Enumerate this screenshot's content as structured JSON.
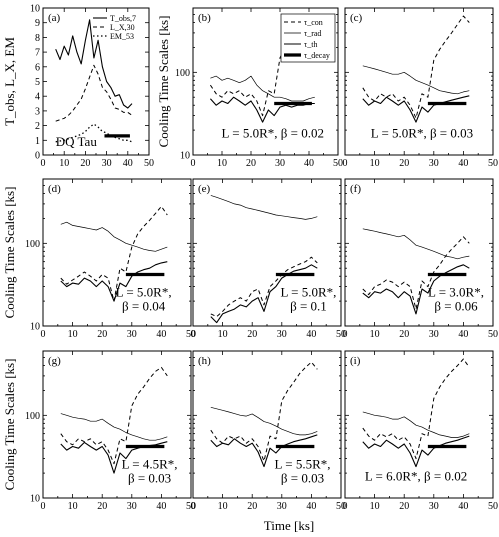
{
  "figure": {
    "x_axis_title": "Time [ks]",
    "y_axis_title_cooling": "Cooling Time Scales [ks]",
    "y_axis_title_obs": "T_obs, L_X, EM"
  },
  "legend": {
    "entries": [
      {
        "key": "con",
        "label": "τ_con",
        "style": "dashed"
      },
      {
        "key": "rad",
        "label": "τ_rad",
        "style": "thin"
      },
      {
        "key": "th",
        "label": "τ_th",
        "style": "solid"
      },
      {
        "key": "decay",
        "label": "τ_decay",
        "style": "thick"
      }
    ]
  },
  "obs_legend": {
    "entries": [
      {
        "key": "T",
        "label": "T_obs,7",
        "style": "solid"
      },
      {
        "key": "LX",
        "label": "L_X,30",
        "style": "dashed"
      },
      {
        "key": "EM",
        "label": "EM_53",
        "style": "dotted"
      }
    ]
  },
  "chart_data": [
    {
      "panel": "a",
      "type": "line",
      "annotation": "DQ Tau",
      "xlim": [
        0,
        50
      ],
      "ylim": [
        0,
        10
      ],
      "x_ticks": [
        0,
        10,
        20,
        30,
        40,
        50
      ],
      "y_ticks": [
        0,
        1,
        2,
        3,
        4,
        5,
        6,
        7,
        8,
        9,
        10
      ],
      "x": [
        6,
        8,
        10,
        12,
        14,
        16,
        18,
        20,
        22,
        24,
        26,
        28,
        30,
        32,
        34,
        36,
        38,
        40,
        42
      ],
      "series": [
        {
          "name": "T_obs,7",
          "style": "solid",
          "values": [
            7.2,
            6.5,
            7.4,
            6.8,
            8.1,
            7.0,
            6.2,
            7.8,
            9.2,
            6.6,
            7.8,
            6.0,
            5.0,
            4.6,
            4.0,
            4.1,
            3.4,
            3.2,
            3.5
          ]
        },
        {
          "name": "L_X,30",
          "style": "dashed",
          "values": [
            2.3,
            2.4,
            2.5,
            2.7,
            3.0,
            3.4,
            3.8,
            4.5,
            5.3,
            6.1,
            5.5,
            4.6,
            4.3,
            3.8,
            3.2,
            3.1,
            2.9,
            2.9,
            2.7
          ]
        },
        {
          "name": "EM_53",
          "style": "dotted",
          "values": [
            0.9,
            0.95,
            1.0,
            1.1,
            1.2,
            1.3,
            1.4,
            1.6,
            1.9,
            2.1,
            1.9,
            1.6,
            1.5,
            1.3,
            1.2,
            1.1,
            1.0,
            1.0,
            0.9
          ]
        },
        {
          "name": "decay",
          "style": "thick",
          "x_range": [
            29,
            41
          ],
          "value": 1.3
        }
      ]
    },
    {
      "panel": "b",
      "type": "line",
      "annotation": "L = 5.0R*, β = 0.02",
      "log_y": true,
      "xlim": [
        0,
        50
      ],
      "ylim": [
        10,
        600
      ],
      "x_ticks": [
        0,
        10,
        20,
        30,
        40,
        50
      ],
      "y_ticks": [
        10,
        100
      ],
      "x": [
        6,
        8,
        10,
        12,
        14,
        16,
        18,
        20,
        22,
        24,
        26,
        28,
        30,
        32,
        34,
        36,
        38,
        40,
        42
      ],
      "series": [
        {
          "name": "τ_con",
          "style": "dashed",
          "values": [
            70,
            55,
            50,
            60,
            55,
            60,
            50,
            55,
            45,
            30,
            60,
            55,
            150,
            200,
            250,
            300,
            380,
            500,
            400
          ]
        },
        {
          "name": "τ_rad",
          "style": "thin",
          "values": [
            85,
            90,
            80,
            85,
            80,
            75,
            80,
            90,
            70,
            60,
            55,
            50,
            50,
            48,
            45,
            45,
            45,
            48,
            50
          ]
        },
        {
          "name": "τ_th",
          "style": "solid",
          "values": [
            48,
            40,
            45,
            42,
            50,
            45,
            40,
            45,
            35,
            25,
            35,
            30,
            38,
            40,
            38,
            40,
            40,
            42,
            42
          ]
        },
        {
          "name": "τ_decay",
          "style": "thick",
          "x_range": [
            28,
            41
          ],
          "value": 42
        }
      ]
    },
    {
      "panel": "c",
      "type": "line",
      "annotation": "L = 5.0R*, β = 0.03",
      "log_y": true,
      "xlim": [
        0,
        50
      ],
      "ylim": [
        10,
        600
      ],
      "x_ticks": [
        0,
        10,
        20,
        30,
        40,
        50
      ],
      "y_ticks": [
        10,
        100
      ],
      "x": [
        6,
        8,
        10,
        12,
        14,
        16,
        18,
        20,
        22,
        24,
        26,
        28,
        30,
        32,
        34,
        36,
        38,
        40,
        42
      ],
      "series": [
        {
          "name": "τ_con",
          "style": "dashed",
          "values": [
            65,
            50,
            45,
            55,
            50,
            55,
            45,
            50,
            40,
            28,
            55,
            50,
            140,
            190,
            240,
            300,
            380,
            480,
            400
          ]
        },
        {
          "name": "τ_rad",
          "style": "thin",
          "values": [
            120,
            115,
            110,
            105,
            100,
            95,
            95,
            100,
            90,
            80,
            75,
            70,
            65,
            60,
            58,
            56,
            55,
            58,
            60
          ]
        },
        {
          "name": "τ_th",
          "style": "solid",
          "values": [
            48,
            40,
            45,
            42,
            50,
            45,
            40,
            45,
            35,
            25,
            38,
            33,
            40,
            42,
            44,
            46,
            48,
            50,
            52
          ]
        },
        {
          "name": "τ_decay",
          "style": "thick",
          "x_range": [
            28,
            41
          ],
          "value": 42
        }
      ]
    },
    {
      "panel": "d",
      "type": "line",
      "annotation": "L = 5.0R*, β = 0.04",
      "log_y": true,
      "xlim": [
        0,
        50
      ],
      "ylim": [
        10,
        600
      ],
      "x_ticks": [
        0,
        10,
        20,
        30,
        40,
        50
      ],
      "y_ticks": [
        10,
        100
      ],
      "x": [
        6,
        8,
        10,
        12,
        14,
        16,
        18,
        20,
        22,
        24,
        26,
        28,
        30,
        32,
        34,
        36,
        38,
        40,
        42
      ],
      "series": [
        {
          "name": "τ_con",
          "style": "dashed",
          "values": [
            38,
            32,
            36,
            40,
            45,
            40,
            35,
            42,
            38,
            20,
            50,
            45,
            90,
            130,
            160,
            190,
            230,
            280,
            220
          ]
        },
        {
          "name": "τ_rad",
          "style": "thin",
          "values": [
            170,
            180,
            165,
            160,
            155,
            150,
            145,
            155,
            140,
            120,
            110,
            100,
            95,
            90,
            85,
            82,
            80,
            85,
            90
          ]
        },
        {
          "name": "τ_th",
          "style": "solid",
          "values": [
            35,
            30,
            33,
            32,
            38,
            35,
            30,
            35,
            30,
            20,
            33,
            30,
            40,
            45,
            48,
            50,
            55,
            58,
            60
          ]
        },
        {
          "name": "τ_decay",
          "style": "thick",
          "x_range": [
            28,
            41
          ],
          "value": 42
        }
      ]
    },
    {
      "panel": "e",
      "type": "line",
      "annotation": "L = 5.0R*, β = 0.1",
      "log_y": true,
      "xlim": [
        0,
        50
      ],
      "ylim": [
        10,
        600
      ],
      "x_ticks": [
        0,
        10,
        20,
        30,
        40,
        50
      ],
      "y_ticks": [
        10,
        100
      ],
      "x": [
        6,
        8,
        10,
        12,
        14,
        16,
        18,
        20,
        22,
        24,
        26,
        28,
        30,
        32,
        34,
        36,
        38,
        40,
        42
      ],
      "series": [
        {
          "name": "τ_con",
          "style": "dashed",
          "values": [
            14,
            13,
            15,
            18,
            20,
            22,
            20,
            26,
            28,
            18,
            30,
            35,
            42,
            48,
            52,
            56,
            60,
            68,
            58
          ]
        },
        {
          "name": "τ_rad",
          "style": "thin",
          "values": [
            380,
            360,
            340,
            320,
            300,
            290,
            270,
            260,
            250,
            240,
            230,
            220,
            215,
            210,
            205,
            200,
            195,
            200,
            210
          ]
        },
        {
          "name": "τ_th",
          "style": "solid",
          "values": [
            13,
            11,
            14,
            15,
            16,
            18,
            17,
            20,
            22,
            15,
            26,
            30,
            38,
            42,
            46,
            48,
            50,
            55,
            50
          ]
        },
        {
          "name": "τ_decay",
          "style": "thick",
          "x_range": [
            28,
            41
          ],
          "value": 42
        }
      ]
    },
    {
      "panel": "f",
      "type": "line",
      "annotation": "L = 3.0R*, β = 0.06",
      "log_y": true,
      "xlim": [
        0,
        50
      ],
      "ylim": [
        10,
        600
      ],
      "x_ticks": [
        0,
        10,
        20,
        30,
        40,
        50
      ],
      "y_ticks": [
        10,
        100
      ],
      "x": [
        6,
        8,
        10,
        12,
        14,
        16,
        18,
        20,
        22,
        24,
        26,
        28,
        30,
        32,
        34,
        36,
        38,
        40,
        42
      ],
      "series": [
        {
          "name": "τ_con",
          "style": "dashed",
          "values": [
            28,
            24,
            30,
            32,
            36,
            34,
            30,
            34,
            30,
            16,
            35,
            30,
            45,
            55,
            70,
            85,
            100,
            120,
            100
          ]
        },
        {
          "name": "τ_rad",
          "style": "thin",
          "values": [
            150,
            145,
            140,
            135,
            130,
            125,
            120,
            125,
            110,
            95,
            90,
            85,
            80,
            75,
            70,
            68,
            65,
            68,
            70
          ]
        },
        {
          "name": "τ_th",
          "style": "solid",
          "values": [
            25,
            22,
            26,
            25,
            28,
            26,
            22,
            26,
            23,
            14,
            28,
            25,
            35,
            40,
            44,
            48,
            52,
            55,
            50
          ]
        },
        {
          "name": "τ_decay",
          "style": "thick",
          "x_range": [
            28,
            41
          ],
          "value": 42
        }
      ]
    },
    {
      "panel": "g",
      "type": "line",
      "annotation": "L = 4.5R*, β = 0.03",
      "log_y": true,
      "xlim": [
        0,
        50
      ],
      "ylim": [
        10,
        600
      ],
      "x_ticks": [
        0,
        10,
        20,
        30,
        40,
        50
      ],
      "y_ticks": [
        10,
        100
      ],
      "x": [
        6,
        8,
        10,
        12,
        14,
        16,
        18,
        20,
        22,
        24,
        26,
        28,
        30,
        32,
        34,
        36,
        38,
        40,
        42
      ],
      "series": [
        {
          "name": "τ_con",
          "style": "dashed",
          "values": [
            60,
            48,
            44,
            52,
            48,
            52,
            44,
            48,
            38,
            26,
            52,
            48,
            130,
            180,
            220,
            280,
            340,
            380,
            300
          ]
        },
        {
          "name": "τ_rad",
          "style": "thin",
          "values": [
            105,
            100,
            95,
            92,
            90,
            85,
            85,
            90,
            80,
            72,
            68,
            62,
            58,
            55,
            52,
            50,
            50,
            52,
            55
          ]
        },
        {
          "name": "τ_th",
          "style": "solid",
          "values": [
            45,
            38,
            42,
            40,
            47,
            42,
            38,
            42,
            33,
            20,
            35,
            30,
            38,
            40,
            42,
            43,
            44,
            46,
            48
          ]
        },
        {
          "name": "τ_decay",
          "style": "thick",
          "x_range": [
            28,
            41
          ],
          "value": 42
        }
      ]
    },
    {
      "panel": "h",
      "type": "line",
      "annotation": "L = 5.5R*, β = 0.03",
      "log_y": true,
      "xlim": [
        0,
        50
      ],
      "ylim": [
        10,
        600
      ],
      "x_ticks": [
        0,
        10,
        20,
        30,
        40,
        50
      ],
      "y_ticks": [
        10,
        100
      ],
      "x": [
        6,
        8,
        10,
        12,
        14,
        16,
        18,
        20,
        22,
        24,
        26,
        28,
        30,
        32,
        34,
        36,
        38,
        40,
        42
      ],
      "series": [
        {
          "name": "τ_con",
          "style": "dashed",
          "values": [
            66,
            52,
            46,
            56,
            52,
            56,
            46,
            52,
            42,
            28,
            56,
            52,
            150,
            200,
            250,
            320,
            380,
            440,
            360
          ]
        },
        {
          "name": "τ_rad",
          "style": "thin",
          "values": [
            125,
            120,
            115,
            110,
            105,
            100,
            98,
            104,
            94,
            84,
            80,
            74,
            68,
            64,
            60,
            58,
            58,
            60,
            64
          ]
        },
        {
          "name": "τ_th",
          "style": "solid",
          "values": [
            50,
            42,
            46,
            44,
            52,
            46,
            42,
            46,
            36,
            24,
            40,
            35,
            42,
            45,
            48,
            50,
            52,
            55,
            58
          ]
        },
        {
          "name": "τ_decay",
          "style": "thick",
          "x_range": [
            28,
            41
          ],
          "value": 42
        }
      ]
    },
    {
      "panel": "i",
      "type": "line",
      "annotation": "L = 6.0R*, β = 0.02",
      "log_y": true,
      "xlim": [
        0,
        50
      ],
      "ylim": [
        10,
        600
      ],
      "x_ticks": [
        0,
        10,
        20,
        30,
        40,
        50
      ],
      "y_ticks": [
        10,
        100
      ],
      "x": [
        6,
        8,
        10,
        12,
        14,
        16,
        18,
        20,
        22,
        24,
        26,
        28,
        30,
        32,
        34,
        36,
        38,
        40,
        42
      ],
      "series": [
        {
          "name": "τ_con",
          "style": "dashed",
          "values": [
            70,
            56,
            50,
            60,
            55,
            60,
            50,
            55,
            45,
            30,
            60,
            56,
            160,
            220,
            280,
            340,
            400,
            480,
            380
          ]
        },
        {
          "name": "τ_rad",
          "style": "thin",
          "values": [
            110,
            105,
            100,
            98,
            95,
            90,
            90,
            96,
            86,
            76,
            72,
            66,
            62,
            58,
            56,
            54,
            54,
            56,
            60
          ]
        },
        {
          "name": "τ_th",
          "style": "solid",
          "values": [
            48,
            40,
            45,
            42,
            50,
            45,
            40,
            45,
            35,
            24,
            38,
            33,
            40,
            43,
            46,
            48,
            50,
            53,
            56
          ]
        },
        {
          "name": "τ_decay",
          "style": "thick",
          "x_range": [
            28,
            41
          ],
          "value": 42
        }
      ]
    }
  ]
}
